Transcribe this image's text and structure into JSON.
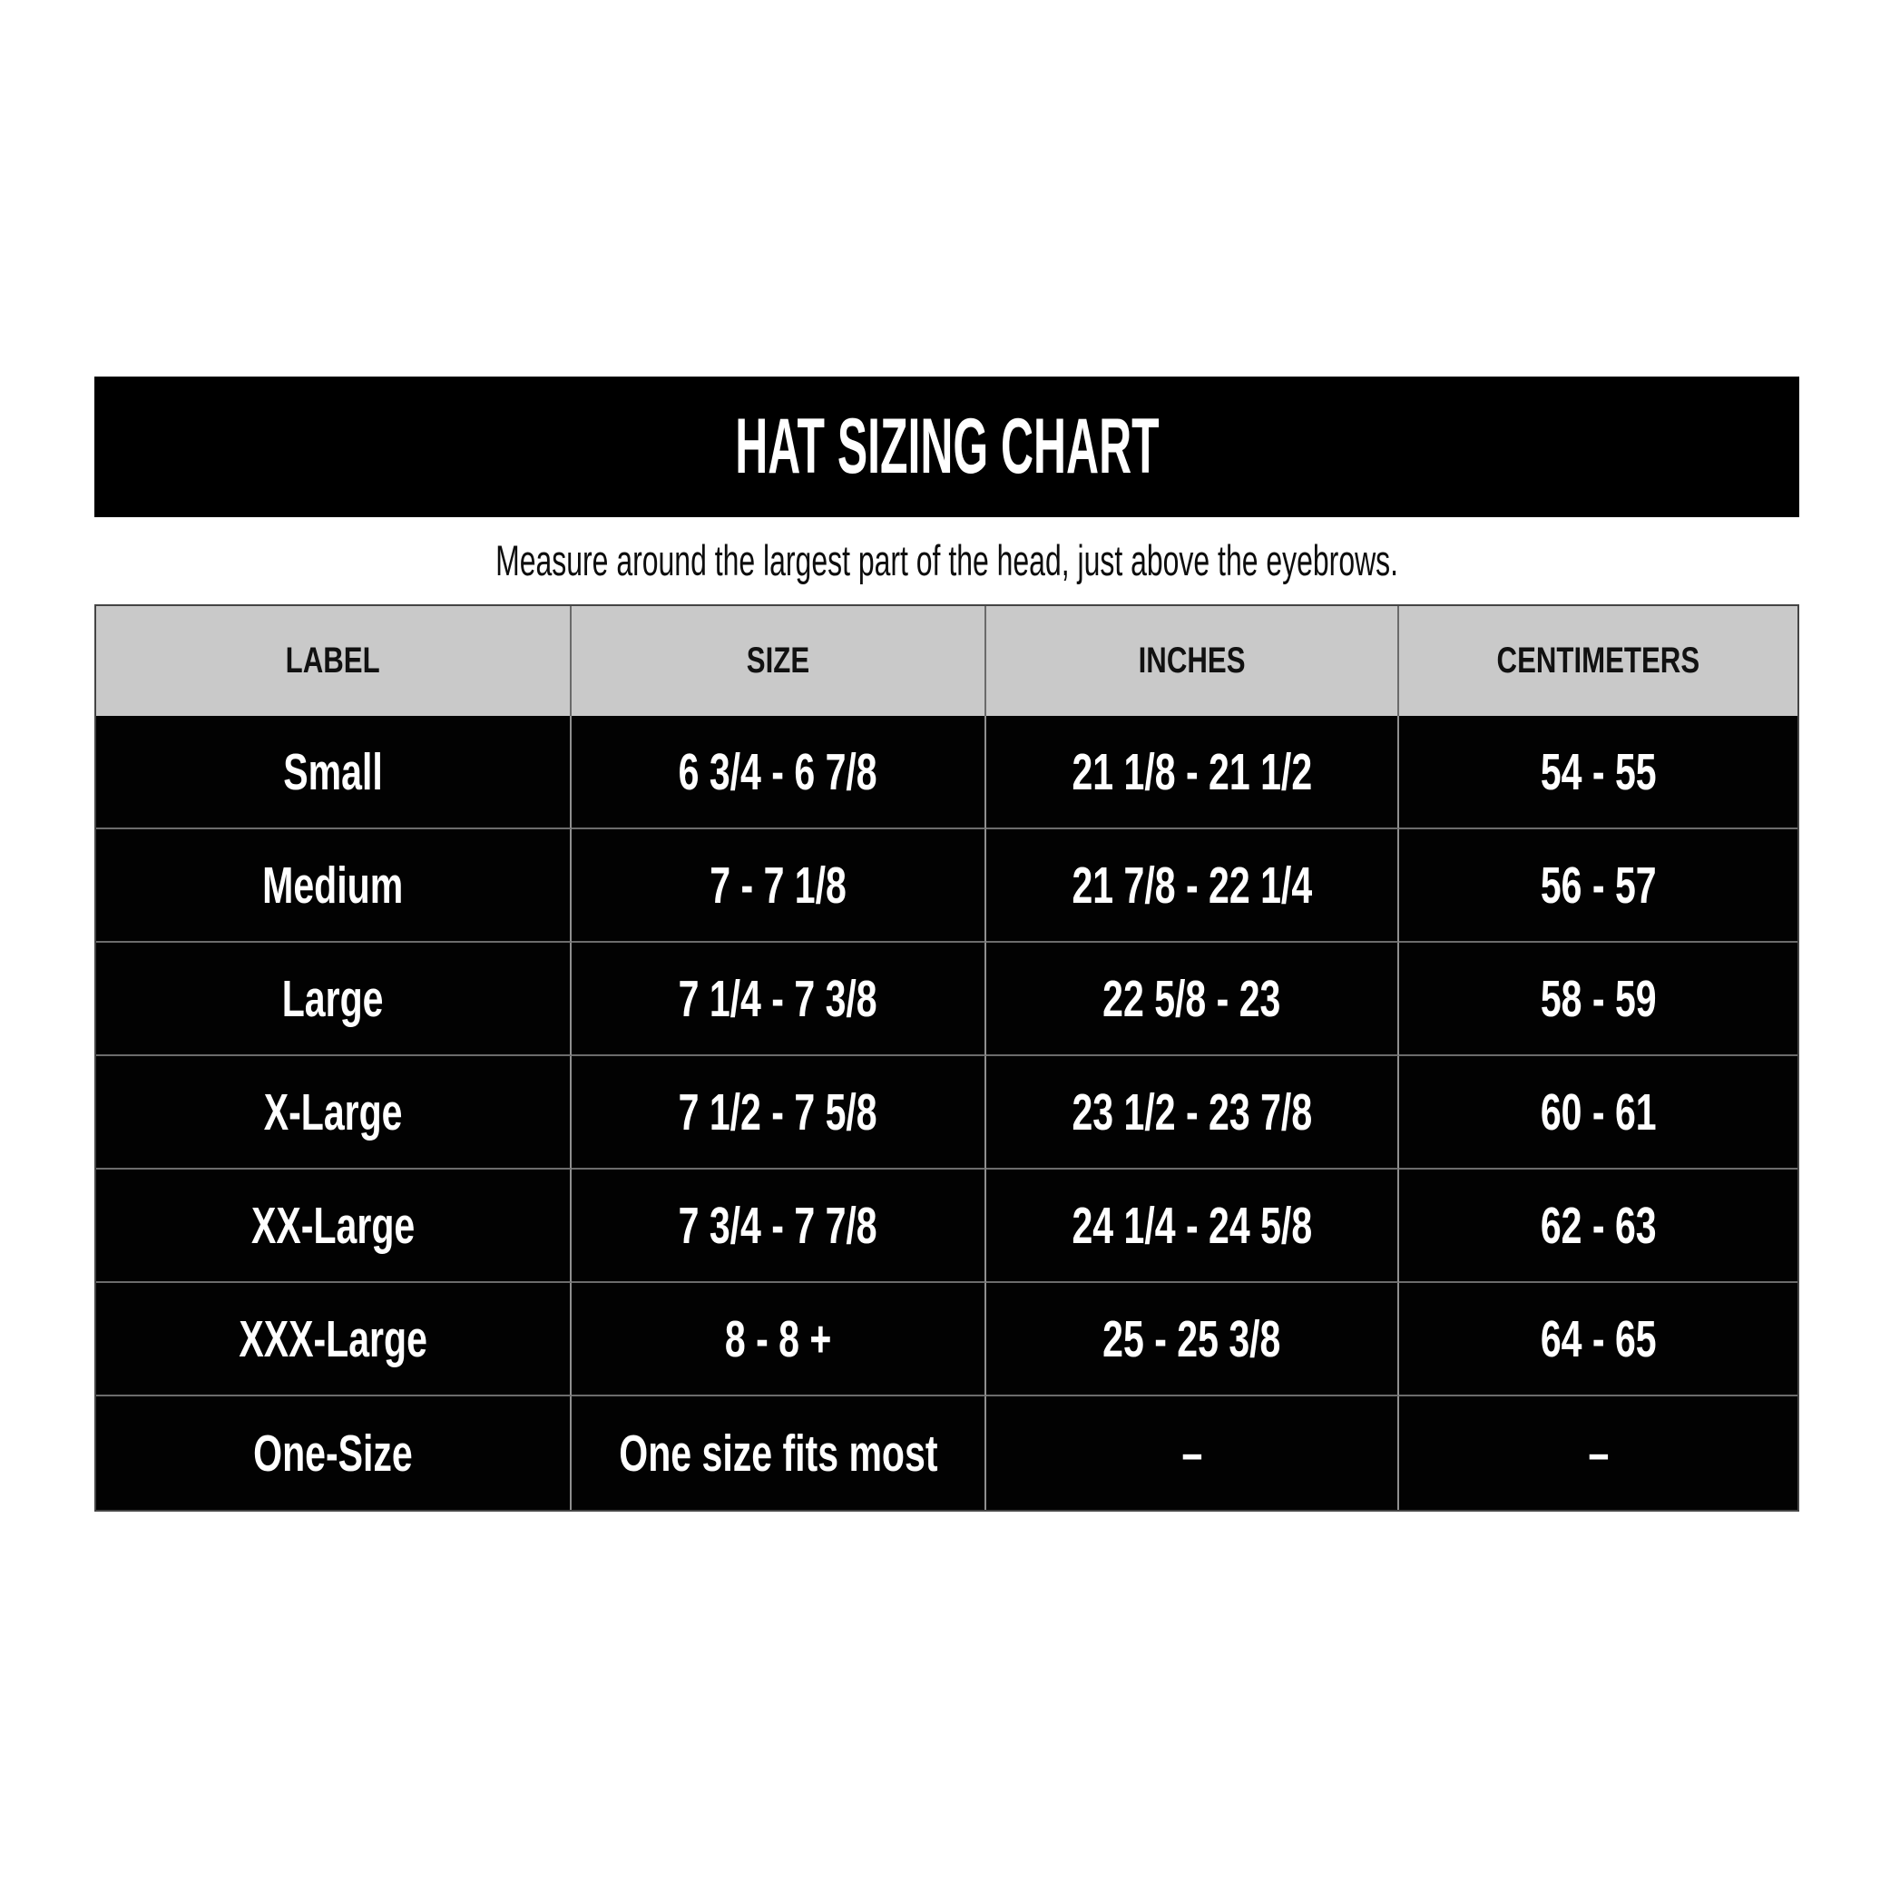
{
  "page": {
    "title": "HAT SIZING CHART",
    "subtitle": "Measure around the largest part of the head, just above the eyebrows."
  },
  "chart_data": {
    "type": "table",
    "title": "HAT SIZING CHART",
    "subtitle": "Measure around the largest part of the head, just above the eyebrows.",
    "columns": [
      "LABEL",
      "SIZE",
      "INCHES",
      "CENTIMETERS"
    ],
    "rows": [
      [
        "Small",
        "6 3/4 - 6 7/8",
        "21 1/8 - 21 1/2",
        "54 - 55"
      ],
      [
        "Medium",
        "7 - 7 1/8",
        "21 7/8 - 22 1/4",
        "56 - 57"
      ],
      [
        "Large",
        "7 1/4 - 7 3/8",
        "22 5/8 - 23",
        "58 - 59"
      ],
      [
        "X-Large",
        "7 1/2 - 7 5/8",
        "23 1/2 - 23 7/8",
        "60 - 61"
      ],
      [
        "XX-Large",
        "7 3/4 - 7 7/8",
        "24 1/4 - 24 5/8",
        "62 - 63"
      ],
      [
        "XXX-Large",
        "8 - 8 +",
        "25 - 25 3/8",
        "64 - 65"
      ],
      [
        "One-Size",
        "One size fits most",
        "–",
        "–"
      ]
    ],
    "layout": {
      "header_row_background": "#c9c9c9",
      "data_row_background": "#020202",
      "grid": true
    }
  },
  "colors": {
    "title_bar_bg": "#000000",
    "title_text": "#ffffff",
    "header_bg": "#c9c9c9",
    "header_text": "#111111",
    "row_bg": "#020202",
    "row_text": "#ffffff",
    "vertical_line": "#8f8f8f",
    "horizontal_line": "#6c6c6c",
    "outer_border": "#444444",
    "page_bg": "#ffffff"
  }
}
